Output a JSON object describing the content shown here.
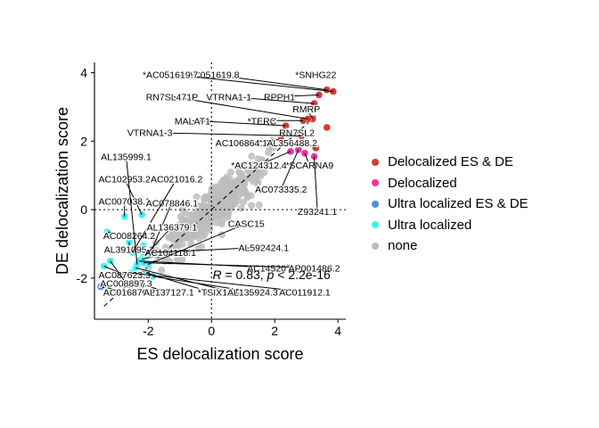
{
  "chart_data": {
    "type": "scatter",
    "xlabel": "ES delocalization score",
    "ylabel": "DE delocalization score",
    "xlim": [
      -3.7,
      4.25
    ],
    "ylim": [
      -3.2,
      4.3
    ],
    "x_ticks": [
      -2,
      0,
      2,
      4
    ],
    "y_ticks": [
      -2,
      0,
      2,
      4
    ],
    "x_tick_labels": [
      "-2",
      "0",
      "2",
      "4"
    ],
    "y_tick_labels": [
      "-2",
      "0",
      "2",
      "4"
    ],
    "reference_lines": {
      "x": 0,
      "y": 0,
      "diagonal_slope": 0.83
    },
    "legend_position": "right",
    "annotation": {
      "x": 1.9,
      "y": -1.9,
      "r_label": "R",
      "r_text": " = 0.83, ",
      "p_label": "p",
      "p_text": " < 2.2e-16"
    },
    "categories": [
      {
        "name": "Delocalized ES & DE",
        "color": "#d43b38"
      },
      {
        "name": "Delocalized",
        "color": "#e8359f"
      },
      {
        "name": "Ultra localized ES & DE",
        "color": "#4b8ef0"
      },
      {
        "name": "Ultra localized",
        "color": "#3ef2f2"
      },
      {
        "name": "none",
        "color": "#bdbdbd"
      }
    ],
    "points": [
      {
        "x": 3.55,
        "y": 3.95,
        "category": "Delocalized ES & DE",
        "label": "*SNHG22",
        "lx": 3.3,
        "ly": 3.95
      },
      {
        "x": 3.65,
        "y": 3.5,
        "category": "Delocalized ES & DE",
        "label": "*AC051619.8",
        "lx": 0.0,
        "ly": 3.95
      },
      {
        "x": 3.85,
        "y": 3.45,
        "category": "Delocalized ES & DE",
        "label": "*AC051619.7",
        "lx": -1.3,
        "ly": 3.95
      },
      {
        "x": 3.4,
        "y": 3.35,
        "category": "Delocalized ES & DE",
        "label": "RPPH1",
        "lx": 2.15,
        "ly": 3.3
      },
      {
        "x": 3.25,
        "y": 3.1,
        "category": "Delocalized ES & DE",
        "label": "VTRNA1-1",
        "lx": 0.55,
        "ly": 3.3
      },
      {
        "x": 3.2,
        "y": 2.65,
        "category": "Delocalized ES & DE",
        "label": "RMRP",
        "lx": 3.0,
        "ly": 2.95
      },
      {
        "x": 3.05,
        "y": 2.65,
        "category": "Delocalized ES & DE",
        "label": "RN7SL471P",
        "lx": -1.25,
        "ly": 3.3
      },
      {
        "x": 2.9,
        "y": 2.6,
        "category": "Delocalized ES & DE",
        "label": "*TERC",
        "lx": 1.6,
        "ly": 2.6
      },
      {
        "x": 2.35,
        "y": 2.45,
        "category": "Delocalized ES & DE",
        "label": "MALAT1",
        "lx": -0.6,
        "ly": 2.6
      },
      {
        "x": 2.8,
        "y": 2.25,
        "category": "Delocalized ES & DE",
        "label": "RN7SL2",
        "lx": 2.7,
        "ly": 2.25
      },
      {
        "x": 2.85,
        "y": 2.15,
        "category": "Delocalized ES & DE",
        "label": "VTRNA1-3",
        "lx": -1.95,
        "ly": 2.25
      },
      {
        "x": 2.2,
        "y": 2.05,
        "category": "Delocalized ES & DE",
        "label": "AC106864.1",
        "lx": 0.95,
        "ly": 1.95
      },
      {
        "x": 3.3,
        "y": 1.8,
        "category": "Delocalized ES & DE",
        "label": "AL356488.2",
        "lx": 2.55,
        "ly": 1.95
      },
      {
        "x": 3.65,
        "y": 2.4,
        "category": "Delocalized ES & DE",
        "label": "",
        "lx": 3.65,
        "ly": 2.4
      },
      {
        "x": 2.95,
        "y": 1.65,
        "category": "Delocalized",
        "label": "*SCARNA9",
        "lx": 3.1,
        "ly": 1.3
      },
      {
        "x": 2.5,
        "y": 1.7,
        "category": "Delocalized",
        "label": "*AC124312.4",
        "lx": 1.5,
        "ly": 1.3
      },
      {
        "x": 2.75,
        "y": 1.75,
        "category": "Delocalized",
        "label": "AC073335.2",
        "lx": 2.2,
        "ly": 0.6
      },
      {
        "x": 3.25,
        "y": 1.55,
        "category": "Delocalized",
        "label": "Z93241.1",
        "lx": 3.35,
        "ly": -0.05
      },
      {
        "x": -3.5,
        "y": -2.25,
        "category": "Ultra localized ES & DE",
        "label": "AC016876.2",
        "lx": -2.6,
        "ly": -2.4
      },
      {
        "x": -2.2,
        "y": -2.2,
        "category": "Ultra localized ES & DE",
        "label": "AL137127.1",
        "lx": -1.35,
        "ly": -2.4
      },
      {
        "x": -3.4,
        "y": -1.65,
        "category": "Ultra localized",
        "label": "AC087623.3",
        "lx": -2.75,
        "ly": -1.9
      },
      {
        "x": -3.2,
        "y": -1.5,
        "category": "Ultra localized",
        "label": "AC008897.3",
        "lx": -2.7,
        "ly": -2.15
      },
      {
        "x": -3.3,
        "y": -0.65,
        "category": "Ultra localized",
        "label": "AC008264.2",
        "lx": -2.6,
        "ly": -0.75
      },
      {
        "x": -2.6,
        "y": -0.95,
        "category": "Ultra localized",
        "label": "AL391095.3",
        "lx": -2.6,
        "ly": -1.15
      },
      {
        "x": -2.2,
        "y": -0.15,
        "category": "Ultra localized",
        "label": "AC102953.2",
        "lx": -2.75,
        "ly": 0.9
      },
      {
        "x": -2.75,
        "y": -0.2,
        "category": "Ultra localized",
        "label": "AC007038.1",
        "lx": -2.75,
        "ly": 0.25
      },
      {
        "x": -1.95,
        "y": -1.3,
        "category": "Ultra localized",
        "label": "AC078846.1",
        "lx": -1.25,
        "ly": 0.2
      },
      {
        "x": -2.5,
        "y": -1.25,
        "category": "Ultra localized",
        "label": "AC021016.2",
        "lx": -1.1,
        "ly": 0.9
      },
      {
        "x": -2.2,
        "y": -1.45,
        "category": "Ultra localized",
        "label": "AC104118.1",
        "lx": -1.3,
        "ly": -1.25
      },
      {
        "x": -2.1,
        "y": -1.35,
        "category": "Ultra localized",
        "label": "AL136379.1",
        "lx": -1.25,
        "ly": -0.5
      },
      {
        "x": -2.0,
        "y": -1.6,
        "category": "Ultra localized",
        "label": "CASC15",
        "lx": 1.1,
        "ly": -0.4
      },
      {
        "x": -1.9,
        "y": -1.25,
        "category": "Ultra localized",
        "label": "AL592424.1",
        "lx": 1.65,
        "ly": -1.1
      },
      {
        "x": -2.3,
        "y": -1.5,
        "category": "Ultra localized",
        "label": "AC145207.2",
        "lx": 1.95,
        "ly": -1.7
      },
      {
        "x": -2.15,
        "y": -1.55,
        "category": "Ultra localized",
        "label": "AP001486.2",
        "lx": 3.25,
        "ly": -1.7
      },
      {
        "x": -2.4,
        "y": -1.7,
        "category": "Ultra localized",
        "label": "AC113383.1",
        "lx": 0.6,
        "ly": -2.4
      },
      {
        "x": -2.35,
        "y": -1.6,
        "category": "Ultra localized",
        "label": "AL135999.1",
        "lx": -2.7,
        "ly": 1.55
      },
      {
        "x": -1.85,
        "y": -1.95,
        "category": "Ultra localized",
        "label": "AL135924.3",
        "lx": 1.3,
        "ly": -2.4
      },
      {
        "x": -2.55,
        "y": -1.85,
        "category": "Ultra localized",
        "label": "AC011912.1",
        "lx": 2.95,
        "ly": -2.4
      },
      {
        "x": -2.05,
        "y": -1.85,
        "category": "Ultra localized",
        "label": "*TSIX",
        "lx": -0.05,
        "ly": -2.4
      },
      {
        "x": -2.6,
        "y": -2.2,
        "category": "Ultra localized",
        "label": "",
        "lx": -2.6,
        "ly": -2.2
      },
      {
        "x": -2.15,
        "y": -1.05,
        "category": "Ultra localized",
        "label": "",
        "lx": -2.15,
        "ly": -1.05
      }
    ]
  }
}
